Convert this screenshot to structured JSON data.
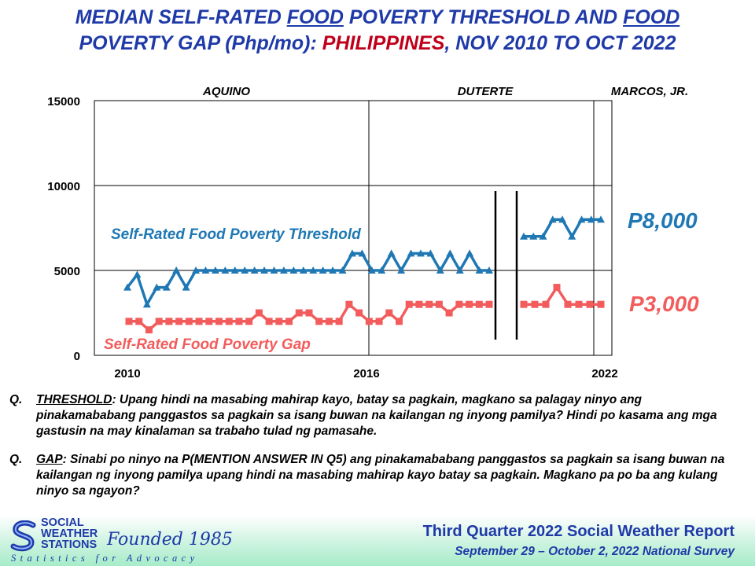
{
  "title": {
    "part1": "MEDIAN SELF-RATED ",
    "food1": "FOOD",
    "part2": " POVERTY THRESHOLD AND ",
    "food2": "FOOD",
    "part3": "POVERTY GAP (Php/mo): ",
    "country": "PHILIPPINES",
    "part4": ", NOV 2010 TO OCT 2022"
  },
  "chart_data": {
    "type": "line",
    "x_tick_labels": [
      "2010",
      "2016",
      "2022"
    ],
    "y_ticks": [
      0,
      5000,
      10000,
      15000
    ],
    "ylim": [
      0,
      15000
    ],
    "grid": "horizontal",
    "administrations": [
      "AQUINO",
      "DUTERTE",
      "MARCOS, JR."
    ],
    "series": [
      {
        "name": "Self-Rated Food Poverty Threshold",
        "color": "#1f78b4",
        "marker": "triangle",
        "end_label": "P8,000",
        "segments": [
          [
            4000,
            4750,
            3000,
            4000,
            4000,
            5000,
            4000,
            5000,
            5000,
            5000,
            5000,
            5000,
            5000,
            5000,
            5000,
            5000,
            5000,
            5000,
            5000,
            5000,
            5000,
            5000,
            5000,
            6000,
            6000,
            5000,
            5000,
            6000,
            5000,
            6000,
            6000,
            6000,
            5000,
            6000,
            5000,
            6000,
            5000,
            5000
          ],
          [
            7000,
            7000,
            7000,
            8000,
            8000,
            7000,
            8000,
            8000,
            8000
          ]
        ]
      },
      {
        "name": "Self-Rated Food Poverty Gap",
        "color": "#f25c5c",
        "marker": "square",
        "end_label": "P3,000",
        "segments": [
          [
            2000,
            2000,
            1500,
            2000,
            2000,
            2000,
            2000,
            2000,
            2000,
            2000,
            2000,
            2000,
            2000,
            2500,
            2000,
            2000,
            2000,
            2500,
            2500,
            2000,
            2000,
            2000,
            3000,
            2500,
            2000,
            2000,
            2500,
            2000,
            3000,
            3000,
            3000,
            3000,
            2500,
            3000,
            3000,
            3000,
            3000
          ],
          [
            3000,
            3000,
            3000,
            4000,
            3000,
            3000,
            3000,
            3000
          ]
        ]
      }
    ]
  },
  "questions": [
    {
      "label": "Q.",
      "key": "THRESHOLD",
      "text": ": Upang hindi na masabing mahirap kayo, batay sa pagkain, magkano sa palagay ninyo ang pinakamababang panggastos sa pagkain sa isang buwan na kailangan ng inyong pamilya? Hindi po kasama ang mga gastusin na may kinalaman sa trabaho tulad ng pamasahe."
    },
    {
      "label": "Q.",
      "key": "GAP",
      "text": ": Sinabi po ninyo na P(MENTION ANSWER IN Q5) ang pinakamababang panggastos sa pagkain sa isang buwan na kailangan ng inyong pamilya upang hindi na masabing mahirap kayo batay sa pagkain. Magkano pa po ba ang kulang ninyo sa ngayon?"
    }
  ],
  "footer": {
    "logo_line1": "SOCIAL",
    "logo_line2": "WEATHER",
    "logo_line3": "STATIONS",
    "founded": "Founded 1985",
    "tagline": "Statistics for Advocacy",
    "report": "Third Quarter 2022 Social Weather Report",
    "survey": "September 29 – October 2, 2022 National Survey"
  }
}
